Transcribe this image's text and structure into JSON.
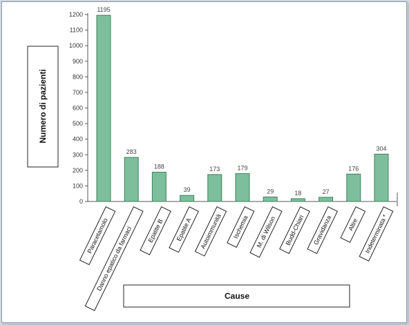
{
  "chart_data": {
    "type": "bar",
    "categories": [
      "Paracetamolo",
      "Danno epatico da farmaci",
      "Epatite B",
      "Epatite A",
      "Autoimmunità",
      "Ischemia",
      "M. di Wilson",
      "Budd-Chiari",
      "Gravidanza",
      "Altre",
      "Indeterminata *"
    ],
    "values": [
      1195,
      283,
      188,
      39,
      173,
      179,
      29,
      18,
      27,
      176,
      304
    ],
    "xlabel": "Cause",
    "ylabel": "Numero di pazienti",
    "ylim": [
      0,
      1200
    ],
    "yticks": [
      0,
      100,
      200,
      300,
      400,
      500,
      600,
      700,
      800,
      900,
      1000,
      1100,
      1200
    ],
    "grid": false,
    "bar_color": "#7dbf9c",
    "bar_edge_color": "#3f7f5d"
  }
}
